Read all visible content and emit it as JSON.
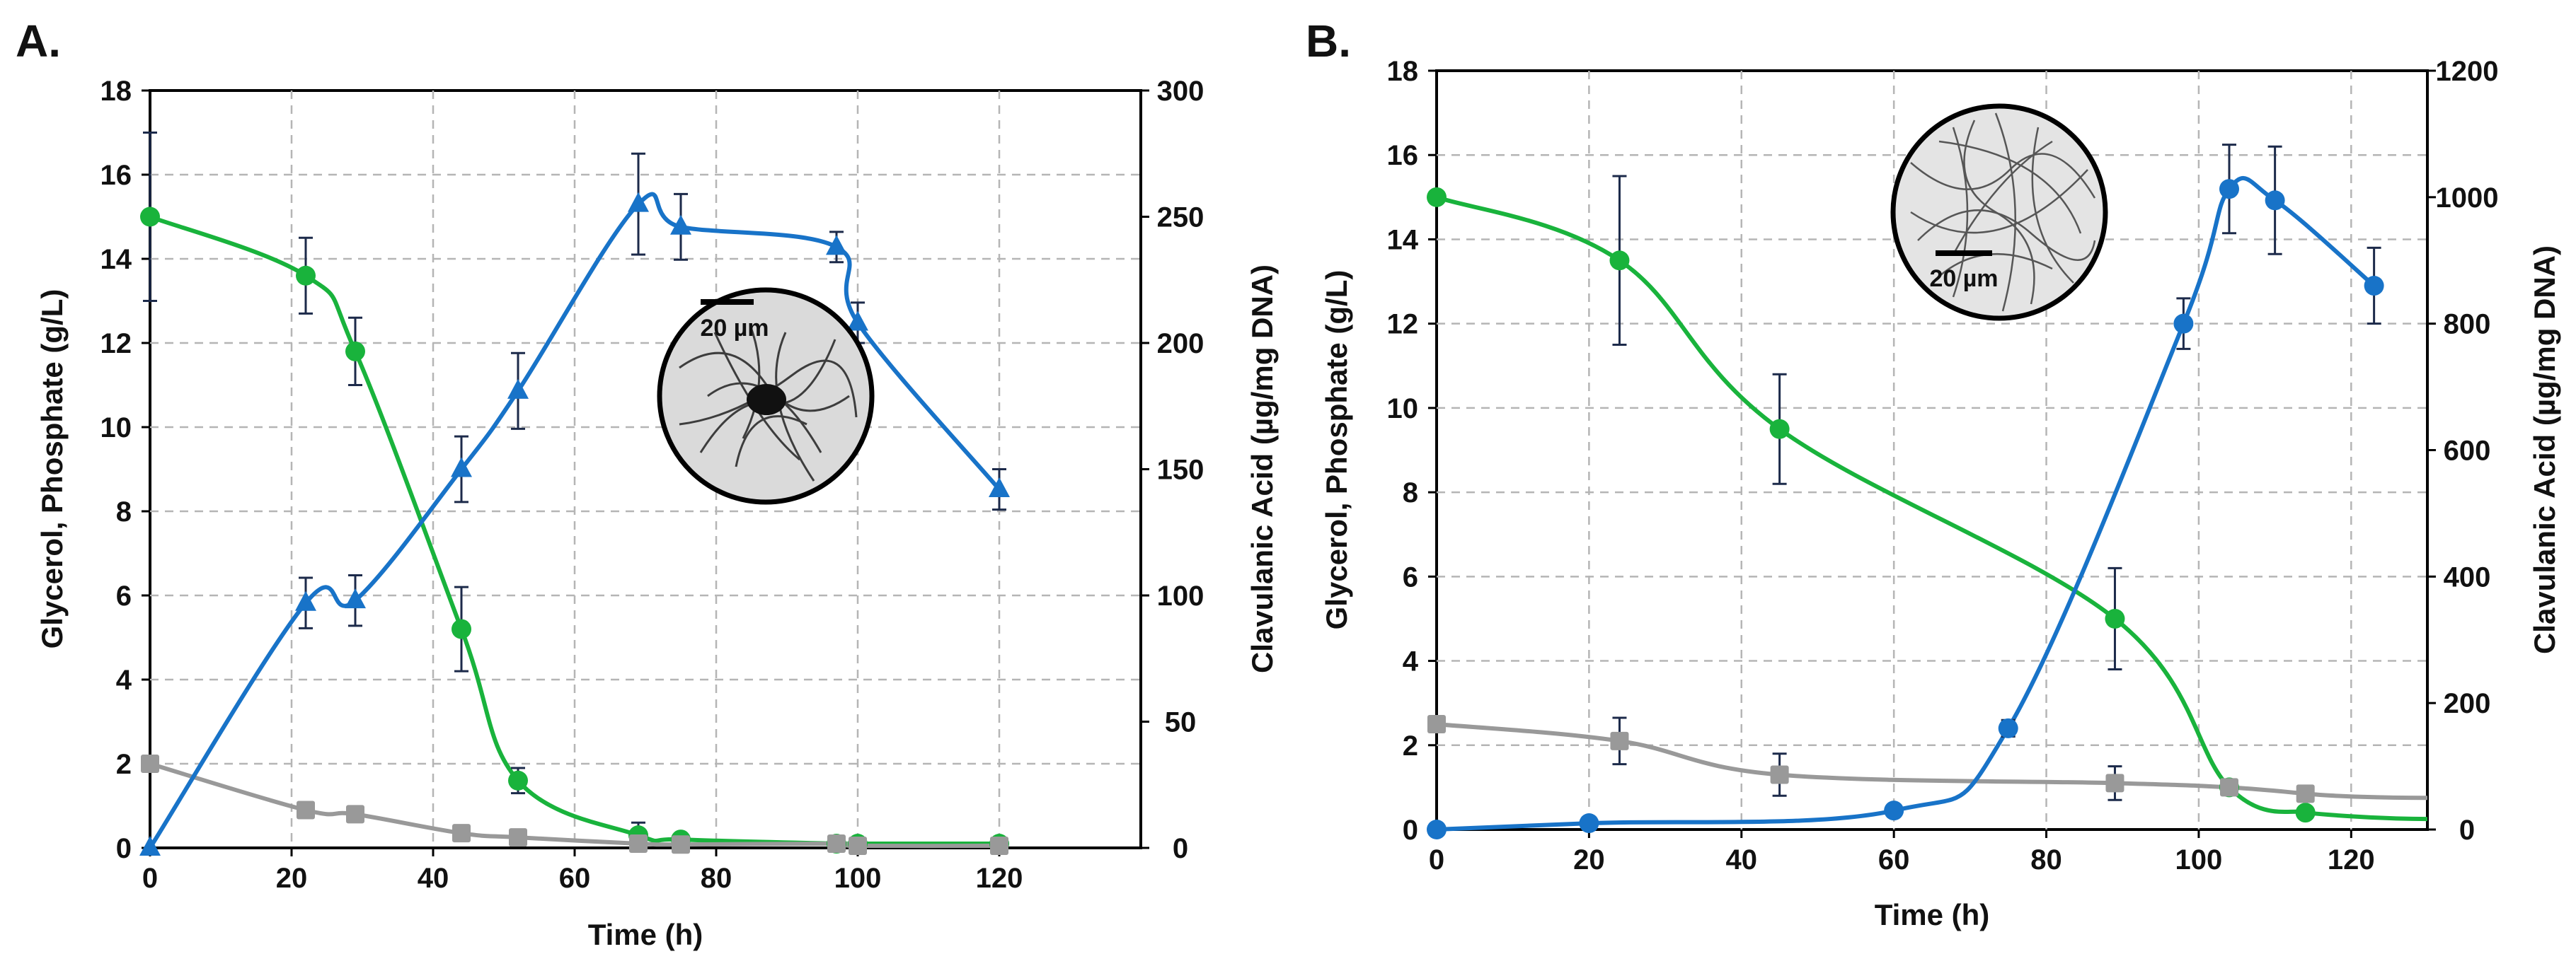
{
  "chart_data": [
    {
      "type": "line",
      "panel_label": "A.",
      "xlabel": "Time (h)",
      "ylabel": "Glycerol, Phosphate (g/L)",
      "y2label": "Clavulanic Acid (µg/mg DNA)",
      "xlim": [
        0,
        140
      ],
      "xticks": [
        0,
        20,
        40,
        60,
        80,
        100,
        120
      ],
      "ylim": [
        0,
        18
      ],
      "yticks": [
        0,
        2,
        4,
        6,
        8,
        10,
        12,
        14,
        16,
        18
      ],
      "y2lim": [
        0,
        300
      ],
      "y2ticks": [
        0,
        50,
        100,
        150,
        200,
        250,
        300
      ],
      "grid": true,
      "inset_scale_label": "20 µm",
      "series": [
        {
          "name": "Glycerol",
          "color": "#19b33c",
          "marker": "circle",
          "axis": "left",
          "x": [
            0,
            22,
            29,
            44,
            52,
            69,
            75,
            97,
            100,
            120
          ],
          "y": [
            15,
            13.6,
            11.8,
            5.2,
            1.6,
            0.3,
            0.2,
            0.1,
            0.1,
            0.1
          ],
          "err": [
            2,
            0.9,
            0.8,
            1,
            0.3,
            0.3,
            0,
            0,
            0,
            0
          ]
        },
        {
          "name": "Phosphate",
          "color": "#999999",
          "marker": "square",
          "axis": "left",
          "x": [
            0,
            22,
            29,
            44,
            52,
            69,
            75,
            97,
            100,
            120
          ],
          "y": [
            2,
            0.9,
            0.8,
            0.35,
            0.25,
            0.1,
            0.08,
            0.1,
            0.05,
            0.05
          ],
          "err": [
            0,
            0,
            0,
            0,
            0,
            0,
            0,
            0,
            0,
            0
          ]
        },
        {
          "name": "Clavulanic Acid",
          "color": "#1873c8",
          "marker": "triangle",
          "axis": "right",
          "x": [
            0,
            22,
            29,
            44,
            52,
            69,
            75,
            97,
            100,
            120
          ],
          "y": [
            0,
            97,
            98,
            150,
            181,
            255,
            246,
            238,
            208,
            142
          ],
          "err": [
            0,
            10,
            10,
            13,
            15,
            20,
            13,
            6,
            8,
            8
          ]
        }
      ]
    },
    {
      "type": "line",
      "panel_label": "B.",
      "xlabel": "Time (h)",
      "ylabel": "Glycerol, Phosphate (g/L)",
      "y2label": "Clavulanic Acid (µg/mg DNA)",
      "xlim": [
        0,
        130
      ],
      "xticks": [
        0,
        20,
        40,
        60,
        80,
        100,
        120
      ],
      "ylim": [
        0,
        18
      ],
      "yticks": [
        0,
        2,
        4,
        6,
        8,
        10,
        12,
        14,
        16,
        18
      ],
      "y2lim": [
        0,
        1200
      ],
      "y2ticks": [
        0,
        200,
        400,
        600,
        800,
        1000,
        1200
      ],
      "grid": true,
      "inset_scale_label": "20 µm",
      "series": [
        {
          "name": "Glycerol",
          "color": "#19b33c",
          "marker": "circle",
          "axis": "left",
          "x": [
            0,
            24,
            45,
            89,
            104,
            114
          ],
          "y": [
            15,
            13.5,
            9.5,
            5,
            1,
            0.4
          ],
          "err": [
            0,
            2,
            1.3,
            1.2,
            0,
            0
          ]
        },
        {
          "name": "Phosphate",
          "color": "#999999",
          "marker": "square",
          "axis": "left",
          "x": [
            0,
            24,
            45,
            89,
            104,
            114
          ],
          "y": [
            2.5,
            2.1,
            1.3,
            1.1,
            1,
            0.85
          ],
          "err": [
            0,
            0.55,
            0.5,
            0.4,
            0,
            0.15
          ]
        },
        {
          "name": "Clavulanic Acid",
          "color": "#1873c8",
          "marker": "circle",
          "axis": "right",
          "x": [
            0,
            20,
            60,
            75,
            98,
            104,
            110,
            123
          ],
          "y": [
            0,
            10,
            30,
            160,
            800,
            1013,
            995,
            860
          ],
          "err": [
            0,
            0,
            0,
            13,
            40,
            70,
            85,
            60
          ]
        }
      ]
    }
  ]
}
